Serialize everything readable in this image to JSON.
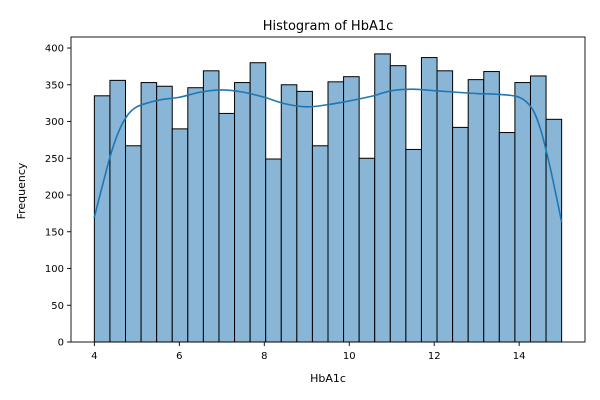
{
  "chart_data": {
    "type": "histogram",
    "title": "Histogram of HbA1c",
    "xlabel": "HbA1c",
    "ylabel": "Frequency",
    "xlim": [
      3.45,
      15.55
    ],
    "ylim": [
      0,
      415
    ],
    "xticks": [
      4,
      6,
      8,
      10,
      12,
      14
    ],
    "yticks": [
      0,
      50,
      100,
      150,
      200,
      250,
      300,
      350,
      400
    ],
    "bin_start": 4.0,
    "bin_end": 15.0,
    "bins": 30,
    "values": [
      335,
      356,
      267,
      353,
      348,
      290,
      346,
      369,
      311,
      353,
      380,
      249,
      350,
      341,
      267,
      354,
      361,
      250,
      392,
      376,
      262,
      387,
      369,
      292,
      357,
      368,
      285,
      353,
      362,
      303
    ],
    "kde": {
      "x": [
        4.0,
        4.2,
        4.4,
        4.6,
        4.8,
        5.0,
        5.3,
        5.6,
        6.0,
        6.5,
        7.0,
        7.5,
        8.0,
        8.5,
        9.0,
        9.5,
        10.0,
        10.5,
        11.0,
        11.5,
        12.0,
        12.5,
        13.0,
        13.5,
        14.0,
        14.3,
        14.5,
        14.7,
        14.85,
        15.0
      ],
      "y": [
        170,
        215,
        258,
        290,
        310,
        320,
        326,
        330,
        333,
        340,
        343,
        340,
        333,
        324,
        320,
        323,
        328,
        334,
        342,
        344,
        342,
        340,
        338,
        337,
        333,
        318,
        290,
        245,
        205,
        163
      ]
    },
    "colors": {
      "bar_fill": "#89b6d6",
      "bar_edge": "#000000",
      "kde_line": "#1f77b4"
    },
    "grid": false
  }
}
